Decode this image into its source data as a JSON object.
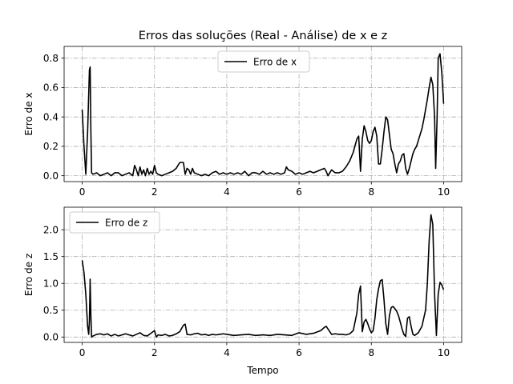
{
  "figure": {
    "title": "Erros das soluções (Real - Análise) de x e z",
    "line_color": "#000000",
    "grid_color": "#b0b0b0"
  },
  "chart_data": [
    {
      "type": "line",
      "title": "Erros das soluções (Real - Análise) de x e z",
      "xlabel": "",
      "ylabel": "Erro de x",
      "xlim": [
        -0.5,
        10.5
      ],
      "ylim": [
        -0.04,
        0.88
      ],
      "xticks": [
        0,
        2,
        4,
        6,
        8,
        10
      ],
      "yticks": [
        0.0,
        0.2,
        0.4,
        0.6,
        0.8
      ],
      "ytick_labels": [
        "0.0",
        "0.2",
        "0.4",
        "0.6",
        "0.8"
      ],
      "grid": true,
      "legend_position": "top-center",
      "series": [
        {
          "name": "Erro de x",
          "x": [
            0,
            0.05,
            0.1,
            0.15,
            0.2,
            0.22,
            0.24,
            0.26,
            0.3,
            0.4,
            0.5,
            0.6,
            0.7,
            0.8,
            0.9,
            1.0,
            1.1,
            1.2,
            1.3,
            1.4,
            1.45,
            1.5,
            1.55,
            1.6,
            1.65,
            1.7,
            1.75,
            1.8,
            1.85,
            1.9,
            1.95,
            2.0,
            2.05,
            2.1,
            2.2,
            2.3,
            2.4,
            2.5,
            2.6,
            2.7,
            2.8,
            2.85,
            2.9,
            2.95,
            3.0,
            3.05,
            3.1,
            3.2,
            3.3,
            3.4,
            3.5,
            3.6,
            3.7,
            3.8,
            3.9,
            4.0,
            4.1,
            4.2,
            4.3,
            4.4,
            4.5,
            4.6,
            4.7,
            4.8,
            4.9,
            5.0,
            5.1,
            5.2,
            5.3,
            5.4,
            5.5,
            5.6,
            5.65,
            5.7,
            5.8,
            5.9,
            6.0,
            6.1,
            6.2,
            6.3,
            6.4,
            6.5,
            6.6,
            6.7,
            6.75,
            6.8,
            6.9,
            7.0,
            7.1,
            7.2,
            7.3,
            7.4,
            7.5,
            7.6,
            7.65,
            7.7,
            7.75,
            7.8,
            7.85,
            7.9,
            7.95,
            8.0,
            8.05,
            8.1,
            8.15,
            8.2,
            8.25,
            8.3,
            8.35,
            8.4,
            8.45,
            8.5,
            8.55,
            8.6,
            8.65,
            8.7,
            8.75,
            8.8,
            8.85,
            8.9,
            8.95,
            9.0,
            9.05,
            9.1,
            9.15,
            9.2,
            9.25,
            9.3,
            9.35,
            9.4,
            9.45,
            9.5,
            9.55,
            9.6,
            9.65,
            9.7,
            9.75,
            9.78,
            9.82,
            9.85,
            9.9,
            9.95,
            10.0
          ],
          "values": [
            0.45,
            0.2,
            0.01,
            0.3,
            0.72,
            0.74,
            0.3,
            0.02,
            0.01,
            0.02,
            0.0,
            0.01,
            0.02,
            0.0,
            0.02,
            0.02,
            0.0,
            0.01,
            0.02,
            0.0,
            0.07,
            0.04,
            0.0,
            0.06,
            0.01,
            0.04,
            0.0,
            0.05,
            0.01,
            0.03,
            0.01,
            0.07,
            0.02,
            0.01,
            0.0,
            0.01,
            0.02,
            0.03,
            0.05,
            0.09,
            0.09,
            0.01,
            0.05,
            0.04,
            0.01,
            0.05,
            0.02,
            0.01,
            0.0,
            0.01,
            0.0,
            0.02,
            0.03,
            0.01,
            0.02,
            0.01,
            0.02,
            0.01,
            0.02,
            0.01,
            0.03,
            0.0,
            0.02,
            0.02,
            0.01,
            0.03,
            0.01,
            0.02,
            0.01,
            0.02,
            0.01,
            0.02,
            0.06,
            0.04,
            0.03,
            0.01,
            0.02,
            0.01,
            0.02,
            0.03,
            0.02,
            0.03,
            0.04,
            0.05,
            0.03,
            0.0,
            0.04,
            0.02,
            0.02,
            0.03,
            0.06,
            0.1,
            0.16,
            0.25,
            0.27,
            0.03,
            0.25,
            0.34,
            0.3,
            0.24,
            0.22,
            0.24,
            0.3,
            0.33,
            0.27,
            0.08,
            0.08,
            0.18,
            0.3,
            0.4,
            0.38,
            0.28,
            0.18,
            0.15,
            0.08,
            0.02,
            0.08,
            0.1,
            0.14,
            0.15,
            0.05,
            0.01,
            0.05,
            0.1,
            0.15,
            0.18,
            0.2,
            0.24,
            0.28,
            0.32,
            0.38,
            0.45,
            0.52,
            0.6,
            0.67,
            0.62,
            0.4,
            0.05,
            0.4,
            0.8,
            0.83,
            0.7,
            0.49
          ]
        }
      ]
    },
    {
      "type": "line",
      "title": "",
      "xlabel": "Tempo",
      "ylabel": "Erro de z",
      "xlim": [
        -0.5,
        10.5
      ],
      "ylim": [
        -0.1,
        2.42
      ],
      "xticks": [
        0,
        2,
        4,
        6,
        8,
        10
      ],
      "yticks": [
        0.0,
        0.5,
        1.0,
        1.5,
        2.0
      ],
      "ytick_labels": [
        "0.0",
        "0.5",
        "1.0",
        "1.5",
        "2.0"
      ],
      "grid": true,
      "legend_position": "top-left",
      "series": [
        {
          "name": "Erro de z",
          "x": [
            0,
            0.05,
            0.1,
            0.15,
            0.18,
            0.2,
            0.22,
            0.24,
            0.26,
            0.3,
            0.4,
            0.5,
            0.6,
            0.7,
            0.8,
            0.9,
            1.0,
            1.1,
            1.2,
            1.3,
            1.4,
            1.5,
            1.6,
            1.7,
            1.8,
            1.9,
            2.0,
            2.05,
            2.1,
            2.2,
            2.3,
            2.4,
            2.5,
            2.6,
            2.7,
            2.8,
            2.85,
            2.9,
            3.0,
            3.1,
            3.2,
            3.3,
            3.4,
            3.5,
            3.6,
            3.7,
            3.8,
            3.9,
            4.0,
            4.2,
            4.4,
            4.6,
            4.8,
            5.0,
            5.2,
            5.4,
            5.6,
            5.8,
            6.0,
            6.2,
            6.4,
            6.6,
            6.7,
            6.75,
            6.8,
            6.9,
            7.0,
            7.1,
            7.2,
            7.3,
            7.4,
            7.5,
            7.6,
            7.65,
            7.7,
            7.72,
            7.75,
            7.8,
            7.85,
            7.9,
            7.95,
            8.0,
            8.05,
            8.1,
            8.15,
            8.2,
            8.25,
            8.3,
            8.35,
            8.4,
            8.45,
            8.5,
            8.55,
            8.6,
            8.65,
            8.7,
            8.75,
            8.8,
            8.85,
            8.9,
            8.95,
            9.0,
            9.05,
            9.1,
            9.15,
            9.2,
            9.3,
            9.4,
            9.5,
            9.55,
            9.6,
            9.65,
            9.7,
            9.75,
            9.8,
            9.85,
            9.9,
            9.95,
            10.0
          ],
          "values": [
            1.43,
            1.2,
            0.8,
            0.2,
            0.05,
            0.3,
            1.08,
            0.4,
            0.0,
            0.02,
            0.05,
            0.06,
            0.04,
            0.06,
            0.02,
            0.05,
            0.02,
            0.04,
            0.06,
            0.04,
            0.02,
            0.05,
            0.08,
            0.03,
            0.02,
            0.07,
            0.12,
            0.0,
            0.04,
            0.03,
            0.05,
            0.02,
            0.03,
            0.06,
            0.1,
            0.22,
            0.24,
            0.05,
            0.04,
            0.06,
            0.07,
            0.04,
            0.05,
            0.03,
            0.05,
            0.04,
            0.05,
            0.06,
            0.05,
            0.03,
            0.04,
            0.05,
            0.03,
            0.04,
            0.03,
            0.05,
            0.04,
            0.03,
            0.08,
            0.05,
            0.07,
            0.12,
            0.18,
            0.2,
            0.15,
            0.05,
            0.06,
            0.05,
            0.05,
            0.04,
            0.06,
            0.12,
            0.45,
            0.8,
            0.95,
            0.6,
            0.1,
            0.28,
            0.33,
            0.25,
            0.15,
            0.08,
            0.12,
            0.35,
            0.7,
            0.9,
            1.05,
            1.07,
            0.7,
            0.25,
            0.05,
            0.4,
            0.55,
            0.57,
            0.53,
            0.48,
            0.4,
            0.28,
            0.15,
            0.05,
            0.01,
            0.35,
            0.38,
            0.2,
            0.05,
            0.03,
            0.08,
            0.2,
            0.5,
            1.0,
            1.8,
            2.28,
            2.1,
            0.8,
            0.03,
            0.8,
            1.02,
            0.97,
            0.88
          ]
        }
      ]
    }
  ]
}
